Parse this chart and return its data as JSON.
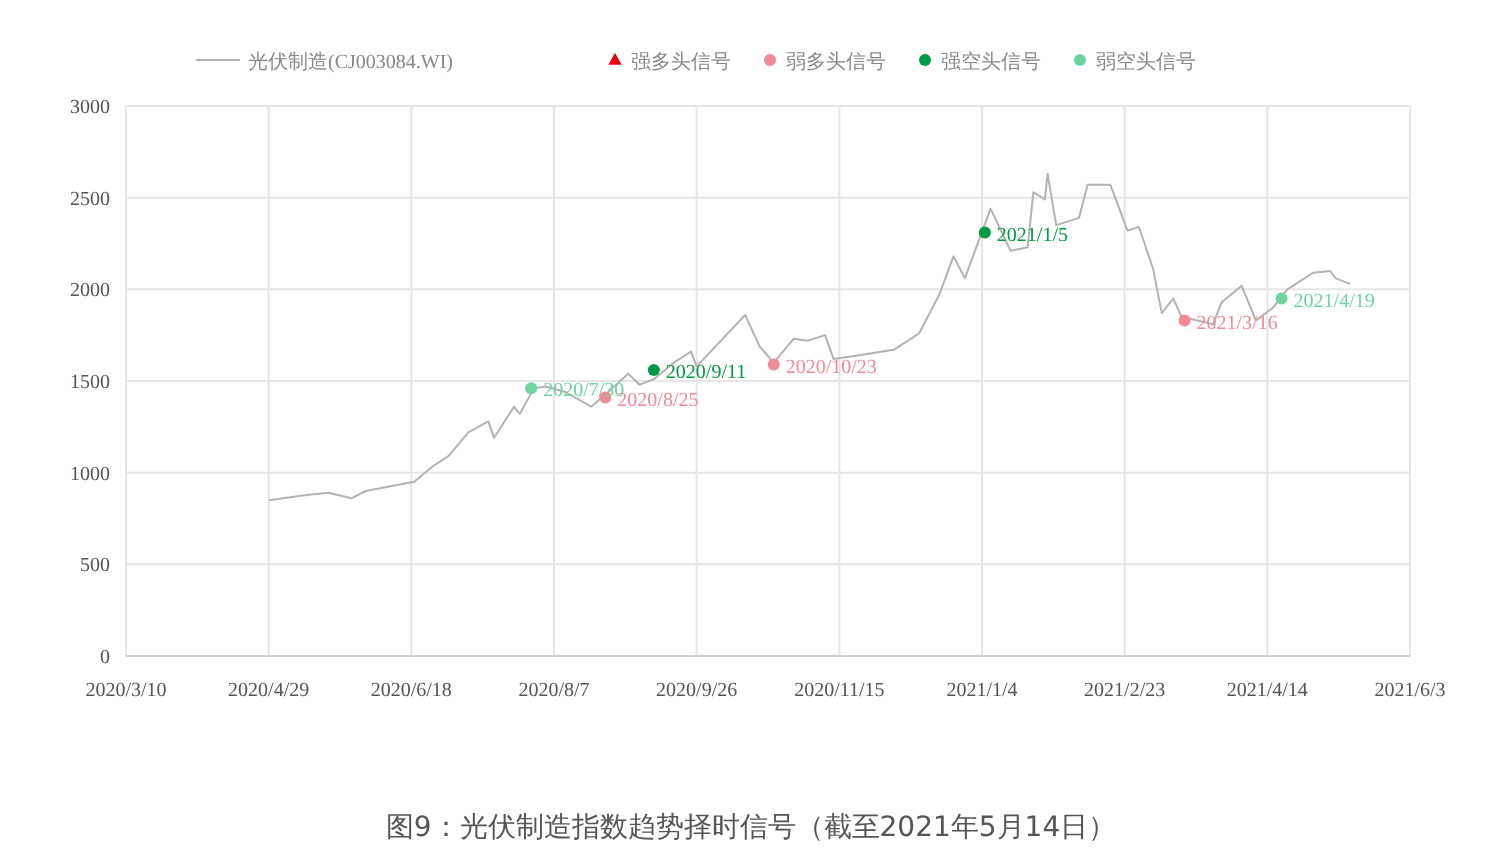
{
  "chart_data": {
    "type": "line",
    "xlim": [
      "2020-03-10",
      "2021-06-03"
    ],
    "xticks": [
      {
        "value": "2020-03-10",
        "label": "2020/3/10"
      },
      {
        "value": "2020-04-29",
        "label": "2020/4/29"
      },
      {
        "value": "2020-06-18",
        "label": "2020/6/18"
      },
      {
        "value": "2020-08-07",
        "label": "2020/8/7"
      },
      {
        "value": "2020-09-26",
        "label": "2020/9/26"
      },
      {
        "value": "2020-11-15",
        "label": "2020/11/15"
      },
      {
        "value": "2021-01-04",
        "label": "2021/1/4"
      },
      {
        "value": "2021-02-23",
        "label": "2021/2/23"
      },
      {
        "value": "2021-04-14",
        "label": "2021/4/14"
      },
      {
        "value": "2021-06-03",
        "label": "2021/6/3"
      }
    ],
    "ylim": [
      0,
      3000
    ],
    "yticks": [
      0,
      500,
      1000,
      1500,
      2000,
      2500,
      3000
    ],
    "grid": true,
    "legend": "top",
    "annotations": [
      "图9：光伏制造指数趋势择时信号（截至2021年5月14日）"
    ],
    "series": [
      {
        "name": "光伏制造(CJ003084.WI)",
        "color": "#b3b3b3",
        "marker": "none",
        "x": [
          "2020-04-29",
          "2020-05-13",
          "2020-05-20",
          "2020-05-28",
          "2020-06-02",
          "2020-06-19",
          "2020-06-26",
          "2020-07-01",
          "2020-07-08",
          "2020-07-15",
          "2020-07-17",
          "2020-07-24",
          "2020-07-26",
          "2020-07-31",
          "2020-08-04",
          "2020-08-11",
          "2020-08-20",
          "2020-08-26",
          "2020-09-02",
          "2020-09-06",
          "2020-09-11",
          "2020-09-18",
          "2020-09-24",
          "2020-09-26",
          "2020-10-13",
          "2020-10-18",
          "2020-10-23",
          "2020-10-30",
          "2020-11-04",
          "2020-11-10",
          "2020-11-13",
          "2020-11-22",
          "2020-12-04",
          "2020-12-13",
          "2020-12-20",
          "2020-12-25",
          "2020-12-29",
          "2021-01-07",
          "2021-01-14",
          "2021-01-20",
          "2021-01-22",
          "2021-01-26",
          "2021-01-27",
          "2021-01-30",
          "2021-02-07",
          "2021-02-10",
          "2021-02-18",
          "2021-02-24",
          "2021-02-28",
          "2021-03-05",
          "2021-03-08",
          "2021-03-12",
          "2021-03-15",
          "2021-03-26",
          "2021-03-29",
          "2021-04-05",
          "2021-04-10",
          "2021-04-16",
          "2021-04-21",
          "2021-04-30",
          "2021-05-06",
          "2021-05-08",
          "2021-05-13"
        ],
        "values": [
          850,
          880,
          890,
          860,
          900,
          950,
          1040,
          1090,
          1220,
          1280,
          1190,
          1360,
          1320,
          1460,
          1470,
          1440,
          1360,
          1440,
          1540,
          1480,
          1510,
          1600,
          1660,
          1580,
          1860,
          1690,
          1600,
          1730,
          1720,
          1750,
          1620,
          1640,
          1670,
          1760,
          1970,
          2180,
          2060,
          2440,
          2210,
          2230,
          2530,
          2490,
          2630,
          2350,
          2390,
          2570,
          2570,
          2320,
          2340,
          2110,
          1870,
          1950,
          1850,
          1810,
          1930,
          2020,
          1830,
          1900,
          2000,
          2090,
          2100,
          2060,
          2030
        ]
      },
      {
        "name": "强多头信号",
        "type": "scatter",
        "color": "#e60012",
        "marker": "triangle"
      },
      {
        "name": "弱多头信号",
        "type": "scatter",
        "color": "#f08a96",
        "marker": "circle",
        "x": [
          "2020-08-25",
          "2020-10-23",
          "2021-03-16"
        ],
        "values": [
          1410,
          1590,
          1830
        ],
        "value_labels": [
          "2020/8/25",
          "2020/10/23",
          "2021/3/16"
        ]
      },
      {
        "name": "强空头信号",
        "type": "scatter",
        "color": "#009944",
        "marker": "circle",
        "x": [
          "2020-09-11",
          "2021-01-05"
        ],
        "values": [
          1560,
          2310
        ],
        "value_labels": [
          "2020/9/11",
          "2021/1/5"
        ]
      },
      {
        "name": "弱空头信号",
        "type": "scatter",
        "color": "#6fd3a0",
        "marker": "circle",
        "x": [
          "2020-07-30",
          "2021-04-19"
        ],
        "values": [
          1460,
          1950
        ],
        "value_labels": [
          "2020/7/30",
          "2021/4/19"
        ]
      }
    ]
  }
}
